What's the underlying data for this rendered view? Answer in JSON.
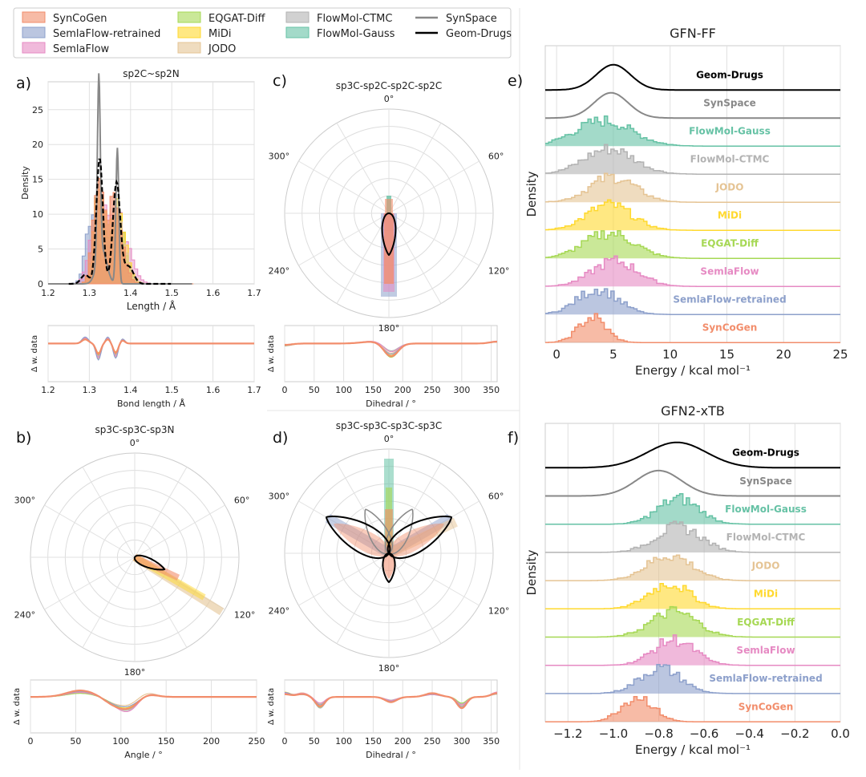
{
  "legend": {
    "items": [
      {
        "name": "SynCoGen",
        "kind": "box",
        "color": "#F28D6B"
      },
      {
        "name": "SemlaFlow-retrained",
        "kind": "box",
        "color": "#8DA0CB"
      },
      {
        "name": "SemlaFlow",
        "kind": "box",
        "color": "#E68AC3"
      },
      {
        "name": "EQGAT-Diff",
        "kind": "box",
        "color": "#A6D854"
      },
      {
        "name": "MiDi",
        "kind": "box",
        "color": "#FFD92F"
      },
      {
        "name": "JODO",
        "kind": "box",
        "color": "#E5C494"
      },
      {
        "name": "FlowMol-CTMC",
        "kind": "box",
        "color": "#B3B3B3"
      },
      {
        "name": "FlowMol-Gauss",
        "kind": "box",
        "color": "#66C2A5"
      },
      {
        "name": "SynSpace",
        "kind": "line",
        "color": "#888888"
      },
      {
        "name": "Geom-Drugs",
        "kind": "line",
        "color": "#000000"
      }
    ]
  },
  "chart_data": [
    {
      "panel": "a)",
      "type": "histogram",
      "title": "sp2C~sp2N",
      "xlabel": "Length / Å",
      "ylabel": "Density",
      "xlim": [
        1.2,
        1.7
      ],
      "ylim": [
        0,
        29
      ],
      "xticks": [
        "1.2",
        "1.3",
        "1.4",
        "1.5",
        "1.6",
        "1.7"
      ],
      "yticks": [
        "0",
        "5",
        "10",
        "15",
        "20",
        "25"
      ],
      "peaks": [
        {
          "series": "SynSpace",
          "peaks": [
            [
              1.323,
              28
            ],
            [
              1.368,
              21.5
            ]
          ]
        },
        {
          "series": "Geom-Drugs",
          "peaks": [
            [
              1.325,
              19.5
            ],
            [
              1.366,
              15
            ]
          ]
        },
        {
          "series": "SemlaFlow-retrained",
          "peaks": [
            [
              1.31,
              11
            ],
            [
              1.36,
              10
            ]
          ]
        },
        {
          "series": "SynCoGen",
          "peaks": [
            [
              1.32,
              14
            ],
            [
              1.36,
              12
            ]
          ]
        }
      ]
    },
    {
      "panel": "a) lower",
      "type": "line",
      "xlabel": "Bond length / Å",
      "ylabel": "Δ w. data",
      "xlim": [
        1.2,
        1.7
      ],
      "xticks": [
        "1.2",
        "1.3",
        "1.4",
        "1.5",
        "1.6",
        "1.7"
      ]
    },
    {
      "panel": "b)",
      "type": "polar",
      "title": "sp3C-sp3C-sp3N",
      "angle_labels": [
        "0°",
        "60°",
        "120°",
        "180°",
        "240°",
        "300°"
      ],
      "mode_deg": 110
    },
    {
      "panel": "b) lower",
      "type": "line",
      "xlabel": "Angle / °",
      "ylabel": "Δ w. data",
      "xlim": [
        0,
        250
      ],
      "xticks": [
        "0",
        "50",
        "100",
        "150",
        "200",
        "250"
      ]
    },
    {
      "panel": "c)",
      "type": "polar",
      "title": "sp3C-sp2C-sp2C-sp2C",
      "angle_labels": [
        "0°",
        "60°",
        "120°",
        "180°",
        "240°",
        "300°"
      ],
      "mode_deg": 180
    },
    {
      "panel": "c) lower",
      "type": "line",
      "xlabel": "Dihedral / °",
      "ylabel": "Δ w. data",
      "xlim": [
        0,
        360
      ],
      "xticks": [
        "0",
        "50",
        "100",
        "150",
        "200",
        "250",
        "300",
        "350"
      ]
    },
    {
      "panel": "d)",
      "type": "polar",
      "title": "sp3C-sp3C-sp3C-sp3C",
      "angle_labels": [
        "0°",
        "60°",
        "120°",
        "180°",
        "240°",
        "300°"
      ],
      "modes_deg": [
        60,
        180,
        300
      ]
    },
    {
      "panel": "d) lower",
      "type": "line",
      "xlabel": "Dihedral / °",
      "ylabel": "Δ w. data",
      "xlim": [
        0,
        360
      ],
      "xticks": [
        "0",
        "50",
        "100",
        "150",
        "200",
        "250",
        "300",
        "350"
      ]
    },
    {
      "panel": "e)",
      "type": "ridgeline",
      "title": "GFN-FF",
      "xlabel": "Energy / kcal mol⁻¹",
      "ylabel": "Density",
      "xlim": [
        -1,
        25
      ],
      "xticks": [
        "0",
        "5",
        "10",
        "15",
        "20",
        "25"
      ],
      "series": [
        {
          "name": "Geom-Drugs",
          "center": 5.0,
          "width": 1.5
        },
        {
          "name": "SynSpace",
          "center": 4.8,
          "width": 1.5
        },
        {
          "name": "FlowMol-Gauss",
          "center": 4.0,
          "width": 2.5
        },
        {
          "name": "FlowMol-CTMC",
          "center": 4.5,
          "width": 2.2
        },
        {
          "name": "JODO",
          "center": 4.8,
          "width": 2.0
        },
        {
          "name": "MiDi",
          "center": 4.5,
          "width": 2.0
        },
        {
          "name": "EQGAT-Diff",
          "center": 4.5,
          "width": 2.2
        },
        {
          "name": "SemlaFlow",
          "center": 5.0,
          "width": 2.0
        },
        {
          "name": "SemlaFlow-retrained",
          "center": 3.5,
          "width": 1.8
        },
        {
          "name": "SynCoGen",
          "center": 3.0,
          "width": 1.2
        }
      ]
    },
    {
      "panel": "f)",
      "type": "ridgeline",
      "title": "GFN2-xTB",
      "xlabel": "Energy / kcal mol⁻¹",
      "ylabel": "Density",
      "xlim": [
        -1.3,
        0.0
      ],
      "xticks": [
        "−1.2",
        "−1.0",
        "−0.8",
        "−0.6",
        "−0.4",
        "−0.2",
        "0.0"
      ],
      "series": [
        {
          "name": "Geom-Drugs",
          "center": -0.72,
          "width": 0.13
        },
        {
          "name": "SynSpace",
          "center": -0.8,
          "width": 0.1
        },
        {
          "name": "FlowMol-Gauss",
          "center": -0.72,
          "width": 0.09
        },
        {
          "name": "FlowMol-CTMC",
          "center": -0.72,
          "width": 0.1
        },
        {
          "name": "JODO",
          "center": -0.76,
          "width": 0.1
        },
        {
          "name": "MiDi",
          "center": -0.76,
          "width": 0.09
        },
        {
          "name": "EQGAT-Diff",
          "center": -0.74,
          "width": 0.1
        },
        {
          "name": "SemlaFlow",
          "center": -0.74,
          "width": 0.09
        },
        {
          "name": "SemlaFlow-retrained",
          "center": -0.8,
          "width": 0.09
        },
        {
          "name": "SynCoGen",
          "center": -0.9,
          "width": 0.07
        }
      ]
    }
  ]
}
